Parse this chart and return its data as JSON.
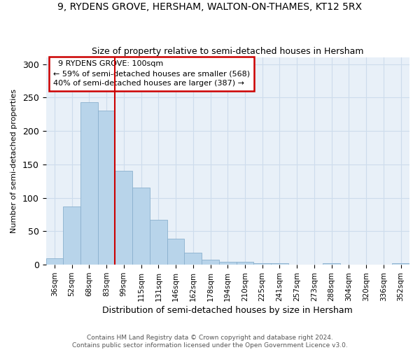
{
  "title1": "9, RYDENS GROVE, HERSHAM, WALTON-ON-THAMES, KT12 5RX",
  "title2": "Size of property relative to semi-detached houses in Hersham",
  "xlabel": "Distribution of semi-detached houses by size in Hersham",
  "ylabel": "Number of semi-detached properties",
  "footer1": "Contains HM Land Registry data © Crown copyright and database right 2024.",
  "footer2": "Contains public sector information licensed under the Open Government Licence v3.0.",
  "annotation_title": "9 RYDENS GROVE: 100sqm",
  "annotation_line1": "← 59% of semi-detached houses are smaller (568)",
  "annotation_line2": "40% of semi-detached houses are larger (387) →",
  "bar_color": "#b8d4ea",
  "bar_edge_color": "#8ab0ce",
  "redline_color": "#cc0000",
  "annotation_box_color": "#cc0000",
  "grid_color": "#cddcec",
  "bg_color": "#e8f0f8",
  "categories": [
    "36sqm",
    "52sqm",
    "68sqm",
    "83sqm",
    "99sqm",
    "115sqm",
    "131sqm",
    "146sqm",
    "162sqm",
    "178sqm",
    "194sqm",
    "210sqm",
    "225sqm",
    "241sqm",
    "257sqm",
    "273sqm",
    "288sqm",
    "304sqm",
    "320sqm",
    "336sqm",
    "352sqm"
  ],
  "values": [
    10,
    87,
    243,
    230,
    141,
    115,
    67,
    39,
    18,
    8,
    4,
    4,
    2,
    2,
    0,
    0,
    2,
    0,
    0,
    0,
    2
  ],
  "redline_index": 4,
  "ylim": [
    0,
    310
  ],
  "yticks": [
    0,
    50,
    100,
    150,
    200,
    250,
    300
  ]
}
